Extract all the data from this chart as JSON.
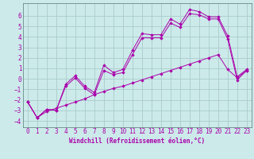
{
  "background_color": "#cceaea",
  "grid_color": "#aacccc",
  "line_color": "#aa00aa",
  "xlabel": "Windchill (Refroidissement éolien,°C)",
  "xlabel_fontsize": 5.5,
  "tick_fontsize": 5.5,
  "xlim": [
    -0.5,
    23.5
  ],
  "ylim": [
    -4.6,
    7.2
  ],
  "yticks": [
    -4,
    -3,
    -2,
    -1,
    0,
    1,
    2,
    3,
    4,
    5,
    6
  ],
  "xticks": [
    0,
    1,
    2,
    3,
    4,
    5,
    6,
    7,
    8,
    9,
    10,
    11,
    12,
    13,
    14,
    15,
    16,
    17,
    18,
    19,
    20,
    21,
    22,
    23
  ],
  "series1": [
    [
      0,
      -2.2
    ],
    [
      1,
      -3.7
    ],
    [
      2,
      -2.9
    ],
    [
      3,
      -3.0
    ],
    [
      4,
      -0.5
    ],
    [
      5,
      0.3
    ],
    [
      6,
      -0.7
    ],
    [
      7,
      -1.3
    ],
    [
      8,
      1.3
    ],
    [
      9,
      0.6
    ],
    [
      10,
      0.9
    ],
    [
      11,
      2.7
    ],
    [
      12,
      4.3
    ],
    [
      13,
      4.2
    ],
    [
      14,
      4.2
    ],
    [
      15,
      5.7
    ],
    [
      16,
      5.2
    ],
    [
      17,
      6.6
    ],
    [
      18,
      6.4
    ],
    [
      19,
      5.9
    ],
    [
      20,
      5.9
    ],
    [
      21,
      4.1
    ],
    [
      22,
      0.2
    ],
    [
      23,
      0.9
    ]
  ],
  "series2": [
    [
      0,
      -2.2
    ],
    [
      1,
      -3.7
    ],
    [
      2,
      -2.9
    ],
    [
      3,
      -3.0
    ],
    [
      4,
      -0.7
    ],
    [
      5,
      0.1
    ],
    [
      6,
      -0.9
    ],
    [
      7,
      -1.5
    ],
    [
      8,
      0.8
    ],
    [
      9,
      0.4
    ],
    [
      10,
      0.6
    ],
    [
      11,
      2.3
    ],
    [
      12,
      3.9
    ],
    [
      13,
      3.9
    ],
    [
      14,
      3.9
    ],
    [
      15,
      5.3
    ],
    [
      16,
      4.9
    ],
    [
      17,
      6.2
    ],
    [
      18,
      6.1
    ],
    [
      19,
      5.7
    ],
    [
      20,
      5.7
    ],
    [
      21,
      3.8
    ],
    [
      22,
      -0.1
    ],
    [
      23,
      0.8
    ]
  ],
  "series3": [
    [
      0,
      -2.2
    ],
    [
      1,
      -3.7
    ],
    [
      2,
      -3.1
    ],
    [
      3,
      -2.8
    ],
    [
      4,
      -2.5
    ],
    [
      5,
      -2.2
    ],
    [
      6,
      -1.9
    ],
    [
      7,
      -1.5
    ],
    [
      8,
      -1.2
    ],
    [
      9,
      -0.9
    ],
    [
      10,
      -0.7
    ],
    [
      11,
      -0.4
    ],
    [
      12,
      -0.1
    ],
    [
      13,
      0.2
    ],
    [
      14,
      0.5
    ],
    [
      15,
      0.8
    ],
    [
      16,
      1.1
    ],
    [
      17,
      1.4
    ],
    [
      18,
      1.7
    ],
    [
      19,
      2.0
    ],
    [
      20,
      2.3
    ],
    [
      21,
      0.9
    ],
    [
      22,
      0.1
    ],
    [
      23,
      0.8
    ]
  ]
}
